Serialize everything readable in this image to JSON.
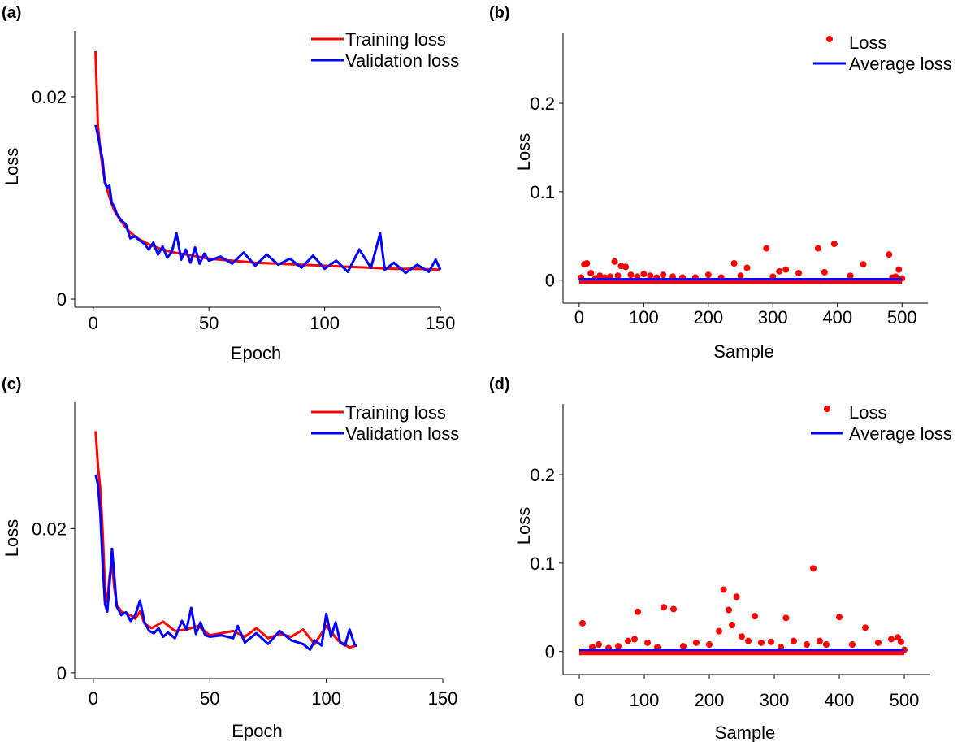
{
  "colors": {
    "training": "#ff0000",
    "validation": "#0000ff",
    "loss_point": "#ff0000",
    "average": "#0000ff"
  },
  "chart_data": [
    {
      "panel": "(a)",
      "type": "line",
      "xlabel": "Epoch",
      "ylabel": "Loss",
      "xlim": [
        -8,
        150
      ],
      "ylim": [
        -0.0008,
        0.0265
      ],
      "xticks": [
        0,
        50,
        100,
        150
      ],
      "yticks": [
        0,
        0.02
      ],
      "ytick_labels": [
        "0",
        "0.02"
      ],
      "grid": false,
      "legend_position": "top-right",
      "series": [
        {
          "name": "Training loss",
          "color": "#ff0000",
          "x": [
            1,
            2,
            3,
            4,
            5,
            6,
            7,
            8,
            9,
            10,
            12,
            14,
            16,
            18,
            20,
            25,
            30,
            35,
            40,
            45,
            50,
            60,
            70,
            80,
            90,
            100,
            110,
            120,
            130,
            140,
            150
          ],
          "values": [
            0.0245,
            0.0172,
            0.0148,
            0.013,
            0.0118,
            0.0108,
            0.0101,
            0.0094,
            0.0088,
            0.0084,
            0.0077,
            0.0071,
            0.0066,
            0.0062,
            0.0059,
            0.0053,
            0.0049,
            0.0046,
            0.0044,
            0.0042,
            0.004,
            0.0038,
            0.0036,
            0.0035,
            0.0034,
            0.0033,
            0.0032,
            0.0031,
            0.003,
            0.003,
            0.0029
          ]
        },
        {
          "name": "Validation loss",
          "color": "#0000ff",
          "x": [
            1,
            2,
            3,
            4,
            5,
            6,
            7,
            8,
            9,
            10,
            12,
            14,
            16,
            18,
            20,
            22,
            24,
            26,
            28,
            30,
            32,
            34,
            36,
            38,
            40,
            42,
            44,
            46,
            48,
            50,
            55,
            60,
            65,
            70,
            75,
            80,
            85,
            90,
            95,
            100,
            105,
            110,
            115,
            120,
            124,
            126,
            130,
            135,
            140,
            145,
            148,
            150
          ],
          "values": [
            0.0172,
            0.0162,
            0.015,
            0.0138,
            0.0115,
            0.011,
            0.0112,
            0.0095,
            0.0092,
            0.0085,
            0.0078,
            0.0074,
            0.006,
            0.0062,
            0.0058,
            0.0055,
            0.0049,
            0.0056,
            0.0044,
            0.0052,
            0.0041,
            0.0047,
            0.0065,
            0.0039,
            0.0049,
            0.0036,
            0.0051,
            0.0035,
            0.0045,
            0.0038,
            0.0042,
            0.0035,
            0.0046,
            0.0033,
            0.0044,
            0.0034,
            0.004,
            0.0031,
            0.0043,
            0.003,
            0.0038,
            0.0027,
            0.0049,
            0.0031,
            0.0065,
            0.0029,
            0.0036,
            0.0026,
            0.0034,
            0.0027,
            0.0039,
            0.0029
          ]
        }
      ]
    },
    {
      "panel": "(b)",
      "type": "scatter",
      "xlabel": "Sample",
      "ylabel": "Loss",
      "xlim": [
        -25,
        540
      ],
      "ylim": [
        -0.026,
        0.28
      ],
      "xticks": [
        0,
        100,
        200,
        300,
        400,
        500
      ],
      "yticks": [
        0,
        0.1,
        0.2
      ],
      "ytick_labels": [
        "0",
        "0.1",
        "0.2"
      ],
      "grid": false,
      "legend_position": "top-right",
      "series": [
        {
          "name": "Loss",
          "color": "#ff0000",
          "marker": "point",
          "x": [
            3,
            8,
            12,
            18,
            25,
            32,
            40,
            48,
            55,
            60,
            65,
            72,
            80,
            90,
            100,
            110,
            120,
            130,
            145,
            160,
            180,
            200,
            220,
            240,
            250,
            260,
            290,
            300,
            310,
            320,
            340,
            370,
            380,
            395,
            420,
            440,
            480,
            485,
            490,
            495,
            500
          ],
          "values": [
            0.003,
            0.018,
            0.019,
            0.008,
            0.002,
            0.005,
            0.003,
            0.004,
            0.021,
            0.005,
            0.016,
            0.015,
            0.006,
            0.004,
            0.007,
            0.005,
            0.003,
            0.006,
            0.004,
            0.003,
            0.003,
            0.006,
            0.003,
            0.019,
            0.005,
            0.014,
            0.036,
            0.004,
            0.01,
            0.012,
            0.008,
            0.036,
            0.009,
            0.041,
            0.005,
            0.018,
            0.029,
            0.003,
            0.004,
            0.012,
            0.002
          ]
        },
        {
          "name": "Average loss",
          "color": "#0000ff",
          "x": [
            0,
            500
          ],
          "values": [
            0.001,
            0.001
          ]
        }
      ]
    },
    {
      "panel": "(c)",
      "type": "line",
      "xlabel": "Epoch",
      "ylabel": "Loss",
      "xlim": [
        -8,
        150
      ],
      "ylim": [
        -0.0008,
        0.0375
      ],
      "xticks": [
        0,
        50,
        100,
        150
      ],
      "yticks": [
        0,
        0.02
      ],
      "ytick_labels": [
        "0",
        "0.02"
      ],
      "grid": false,
      "legend_position": "top-right",
      "series": [
        {
          "name": "Training loss",
          "color": "#ff0000",
          "x": [
            1,
            2,
            3,
            4,
            5,
            6,
            7,
            8,
            9,
            10,
            12,
            14,
            16,
            18,
            20,
            22,
            25,
            30,
            35,
            40,
            45,
            50,
            55,
            60,
            65,
            70,
            75,
            80,
            85,
            90,
            95,
            100,
            105,
            110,
            113
          ],
          "values": [
            0.0335,
            0.0285,
            0.0255,
            0.0195,
            0.0115,
            0.0098,
            0.0135,
            0.015,
            0.0118,
            0.0095,
            0.0085,
            0.0082,
            0.008,
            0.0075,
            0.0085,
            0.0068,
            0.0062,
            0.0071,
            0.0058,
            0.006,
            0.0065,
            0.0052,
            0.0055,
            0.0058,
            0.005,
            0.0062,
            0.0048,
            0.0054,
            0.005,
            0.006,
            0.004,
            0.0065,
            0.0045,
            0.0035,
            0.0038
          ]
        },
        {
          "name": "Validation loss",
          "color": "#0000ff",
          "x": [
            1,
            2,
            3,
            4,
            5,
            6,
            7,
            8,
            9,
            10,
            12,
            14,
            16,
            18,
            20,
            22,
            24,
            26,
            28,
            30,
            32,
            35,
            38,
            40,
            42,
            44,
            46,
            48,
            50,
            55,
            60,
            62,
            65,
            70,
            75,
            80,
            85,
            90,
            93,
            95,
            98,
            100,
            102,
            104,
            106,
            108,
            110,
            112,
            113
          ],
          "values": [
            0.0275,
            0.026,
            0.022,
            0.015,
            0.0095,
            0.0085,
            0.0125,
            0.0172,
            0.0135,
            0.0092,
            0.008,
            0.0084,
            0.0072,
            0.008,
            0.01,
            0.007,
            0.0058,
            0.0055,
            0.0062,
            0.005,
            0.0056,
            0.0048,
            0.0072,
            0.006,
            0.009,
            0.0054,
            0.007,
            0.0052,
            0.005,
            0.0052,
            0.0048,
            0.0065,
            0.0042,
            0.0055,
            0.004,
            0.0058,
            0.0045,
            0.004,
            0.0032,
            0.0045,
            0.0038,
            0.0082,
            0.005,
            0.007,
            0.0042,
            0.0038,
            0.006,
            0.004,
            0.0037
          ]
        }
      ]
    },
    {
      "panel": "(d)",
      "type": "scatter",
      "xlabel": "Sample",
      "ylabel": "Loss",
      "xlim": [
        -25,
        540
      ],
      "ylim": [
        -0.026,
        0.28
      ],
      "xticks": [
        0,
        100,
        200,
        300,
        400,
        500
      ],
      "yticks": [
        0,
        0.1,
        0.2
      ],
      "ytick_labels": [
        "0",
        "0.1",
        "0.2"
      ],
      "grid": false,
      "legend_position": "top-right",
      "series": [
        {
          "name": "Loss",
          "color": "#ff0000",
          "marker": "point",
          "x": [
            5,
            20,
            30,
            45,
            60,
            75,
            85,
            90,
            105,
            120,
            130,
            145,
            160,
            180,
            200,
            215,
            222,
            230,
            235,
            242,
            250,
            260,
            270,
            280,
            295,
            310,
            318,
            330,
            350,
            360,
            370,
            380,
            400,
            420,
            440,
            460,
            480,
            490,
            495,
            500
          ],
          "values": [
            0.032,
            0.005,
            0.008,
            0.004,
            0.006,
            0.012,
            0.014,
            0.045,
            0.01,
            0.005,
            0.05,
            0.048,
            0.006,
            0.01,
            0.008,
            0.023,
            0.07,
            0.047,
            0.03,
            0.062,
            0.017,
            0.012,
            0.04,
            0.01,
            0.011,
            0.005,
            0.038,
            0.012,
            0.008,
            0.094,
            0.012,
            0.008,
            0.039,
            0.008,
            0.027,
            0.01,
            0.014,
            0.016,
            0.011,
            0.002
          ]
        },
        {
          "name": "Average loss",
          "color": "#0000ff",
          "x": [
            0,
            500
          ],
          "values": [
            0.002,
            0.002
          ]
        }
      ]
    }
  ]
}
